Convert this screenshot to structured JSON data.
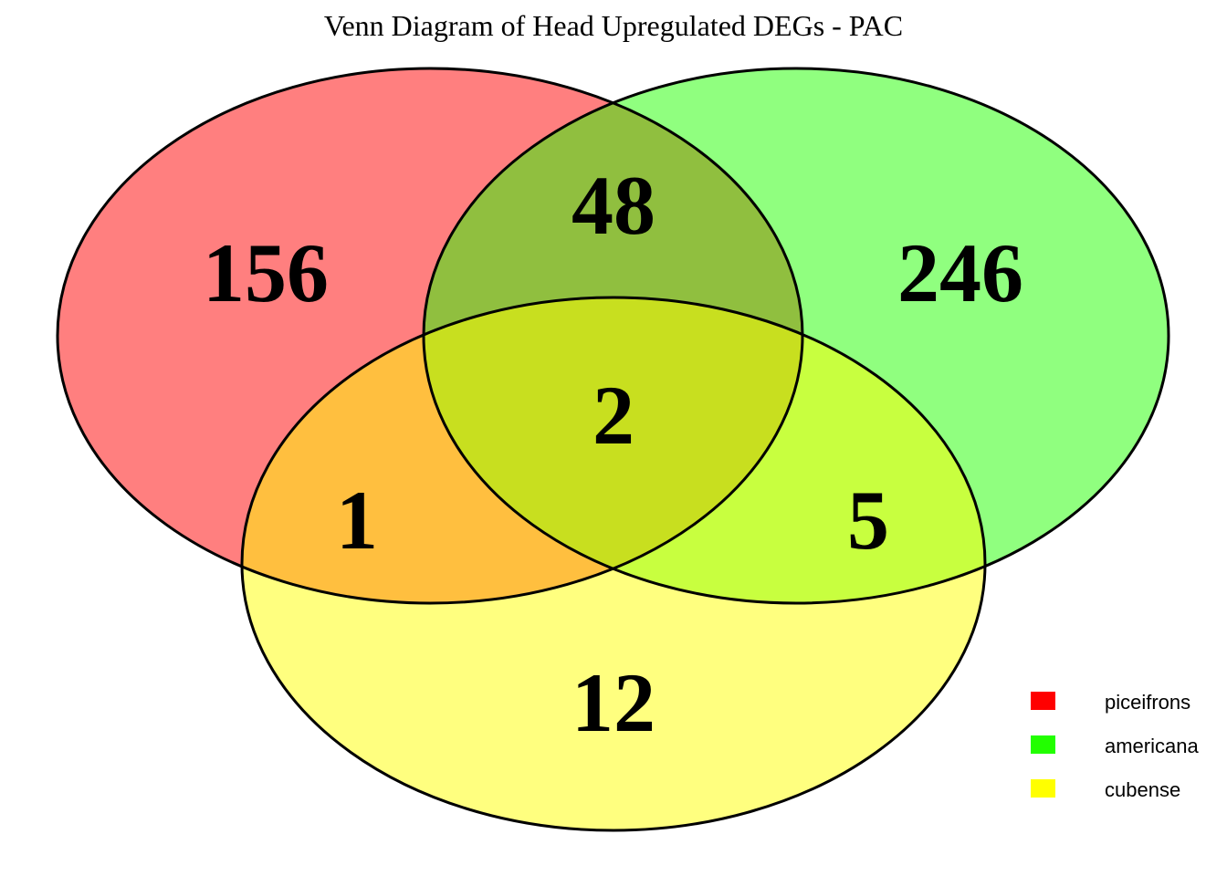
{
  "title": "Venn Diagram of Head Upregulated DEGs - PAC",
  "sets": [
    {
      "name": "piceifrons",
      "color": "#ff0000"
    },
    {
      "name": "americana",
      "color": "#22ff00"
    },
    {
      "name": "cubense",
      "color": "#ffff00"
    }
  ],
  "regions": {
    "piceifrons_only": "156",
    "americana_only": "246",
    "cubense_only": "12",
    "piceifrons_americana": "48",
    "piceifrons_cubense": "1",
    "americana_cubense": "5",
    "all_three": "2"
  }
}
